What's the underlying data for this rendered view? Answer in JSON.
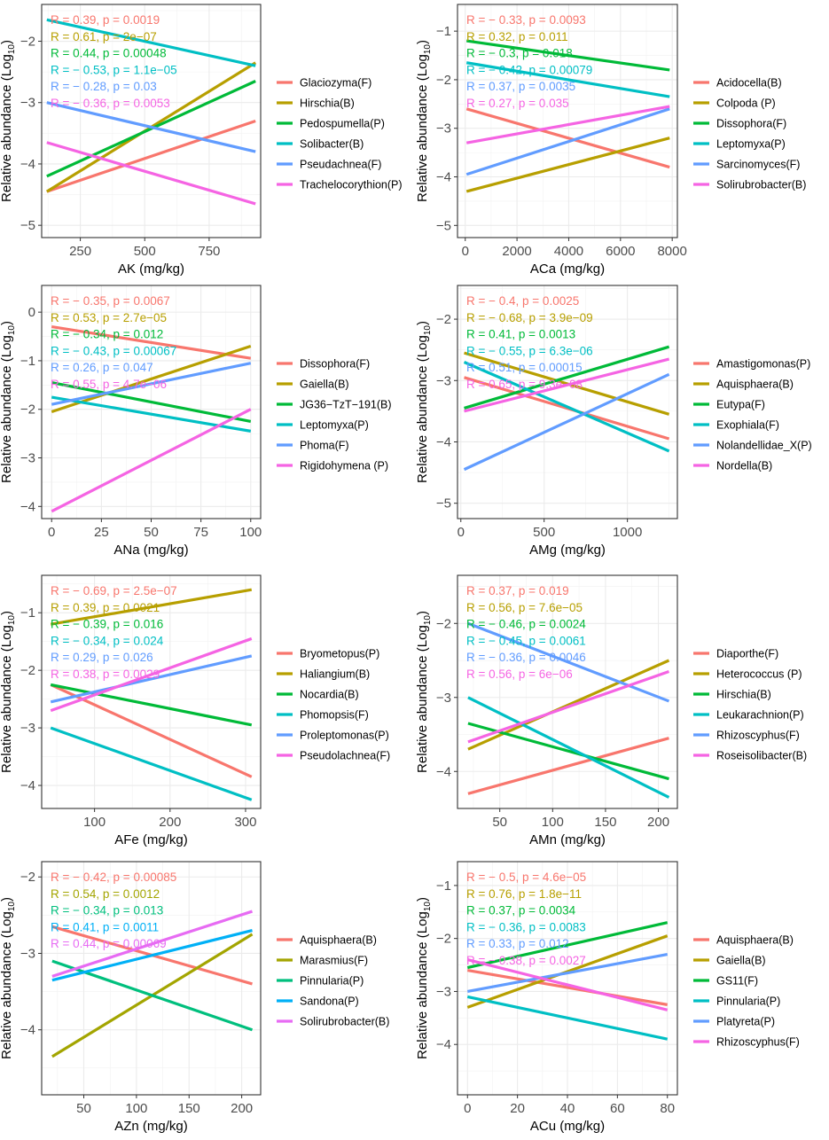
{
  "chart_data": [
    {
      "type": "line",
      "title": "",
      "xlabel": "AK (mg/kg)",
      "ylabel": "Relative abundance (Log10)",
      "xlim": [
        100,
        950
      ],
      "ylim": [
        -5.2,
        -1.4
      ],
      "xticks": [
        250,
        500,
        750
      ],
      "yticks": [
        -5,
        -4,
        -3,
        -2
      ],
      "grid": true,
      "legend_position": "right",
      "series": [
        {
          "name": "Glaciozyma(F)",
          "color": "#F8766D",
          "x": [
            120,
            930
          ],
          "y": [
            -4.45,
            -3.3
          ],
          "stat": "R = 0.39, p = 0.0019"
        },
        {
          "name": "Hirschia(B)",
          "color": "#B79F00",
          "x": [
            120,
            930
          ],
          "y": [
            -4.45,
            -2.35
          ],
          "stat": "R = 0.61, p = 2e−07"
        },
        {
          "name": "Pedospumella(P)",
          "color": "#00BA38",
          "x": [
            120,
            930
          ],
          "y": [
            -4.2,
            -2.65
          ],
          "stat": "R = 0.44, p = 0.00048"
        },
        {
          "name": "Solibacter(B)",
          "color": "#00BFC4",
          "x": [
            120,
            930
          ],
          "y": [
            -1.65,
            -2.4
          ],
          "stat": "R = − 0.53, p = 1.1e−05"
        },
        {
          "name": "Pseudachnea(F)",
          "color": "#619CFF",
          "x": [
            120,
            930
          ],
          "y": [
            -3.0,
            -3.8
          ],
          "stat": "R = − 0.28, p = 0.03"
        },
        {
          "name": "Trachelocorythion(P)",
          "color": "#F564E3",
          "x": [
            120,
            930
          ],
          "y": [
            -3.65,
            -4.65
          ],
          "stat": "R = − 0.36, p = 0.0053"
        }
      ]
    },
    {
      "type": "line",
      "title": "",
      "xlabel": "ACa (mg/kg)",
      "ylabel": "Relative abundance (Log10)",
      "xlim": [
        -300,
        8200
      ],
      "ylim": [
        -5.25,
        -0.45
      ],
      "xticks": [
        0,
        2000,
        4000,
        6000,
        8000
      ],
      "yticks": [
        -5,
        -4,
        -3,
        -2,
        -1
      ],
      "grid": true,
      "legend_position": "right",
      "series": [
        {
          "name": "Acidocella(B)",
          "color": "#F8766D",
          "x": [
            50,
            7900
          ],
          "y": [
            -2.6,
            -3.8
          ],
          "stat": "R = − 0.33, p = 0.0093"
        },
        {
          "name": "Colpoda (P)",
          "color": "#B79F00",
          "x": [
            50,
            7900
          ],
          "y": [
            -4.3,
            -3.2
          ],
          "stat": "R = 0.32, p = 0.011"
        },
        {
          "name": "Dissophora(F)",
          "color": "#00BA38",
          "x": [
            50,
            7900
          ],
          "y": [
            -1.2,
            -1.8
          ],
          "stat": "R = − 0.3, p = 0.018"
        },
        {
          "name": "Leptomyxa(P)",
          "color": "#00BFC4",
          "x": [
            50,
            7900
          ],
          "y": [
            -1.65,
            -2.35
          ],
          "stat": "R = − 0.42, p = 0.00079"
        },
        {
          "name": "Sarcinomyces(F)",
          "color": "#619CFF",
          "x": [
            50,
            7900
          ],
          "y": [
            -3.95,
            -2.6
          ],
          "stat": "R = 0.37, p = 0.0035"
        },
        {
          "name": "Solirubrobacter(B)",
          "color": "#F564E3",
          "x": [
            50,
            7900
          ],
          "y": [
            -3.3,
            -2.55
          ],
          "stat": "R = 0.27, p = 0.035"
        }
      ]
    },
    {
      "type": "line",
      "title": "",
      "xlabel": "ANa (mg/kg)",
      "ylabel": "Relative abundance (Log10)",
      "xlim": [
        -5,
        105
      ],
      "ylim": [
        -4.25,
        0.55
      ],
      "xticks": [
        0,
        25,
        50,
        75,
        100
      ],
      "yticks": [
        -4,
        -3,
        -2,
        -1,
        0
      ],
      "grid": true,
      "legend_position": "right",
      "series": [
        {
          "name": "Dissophora(F)",
          "color": "#F8766D",
          "x": [
            0,
            100
          ],
          "y": [
            -0.3,
            -0.95
          ],
          "stat": "R = − 0.35, p = 0.0067"
        },
        {
          "name": "Gaiella(B)",
          "color": "#B79F00",
          "x": [
            0,
            100
          ],
          "y": [
            -2.05,
            -0.7
          ],
          "stat": "R = 0.53, p = 2.7e−05"
        },
        {
          "name": "JG36−TzT−191(B)",
          "color": "#00BA38",
          "x": [
            0,
            100
          ],
          "y": [
            -1.45,
            -2.25
          ],
          "stat": "R = − 0.34, p = 0.012"
        },
        {
          "name": "Leptomyxa(P)",
          "color": "#00BFC4",
          "x": [
            0,
            100
          ],
          "y": [
            -1.75,
            -2.45
          ],
          "stat": "R = − 0.43, p = 0.00067"
        },
        {
          "name": "Phoma(F)",
          "color": "#619CFF",
          "x": [
            0,
            100
          ],
          "y": [
            -1.9,
            -1.05
          ],
          "stat": "R = 0.26, p = 0.047"
        },
        {
          "name": "Rigidohymena (P)",
          "color": "#F564E3",
          "x": [
            0,
            100
          ],
          "y": [
            -4.1,
            -2.0
          ],
          "stat": "R = 0.55, p = 4.7e−06"
        }
      ]
    },
    {
      "type": "line",
      "title": "",
      "xlabel": "AMg (mg/kg)",
      "ylabel": "Relative abundance (Log10)",
      "xlim": [
        -20,
        1300
      ],
      "ylim": [
        -5.25,
        -1.45
      ],
      "xticks": [
        0,
        500,
        1000
      ],
      "yticks": [
        -5,
        -4,
        -3,
        -2
      ],
      "grid": true,
      "legend_position": "right",
      "series": [
        {
          "name": "Amastigomonas(P)",
          "color": "#F8766D",
          "x": [
            20,
            1250
          ],
          "y": [
            -2.95,
            -3.95
          ],
          "stat": "R = − 0.4, p = 0.0025"
        },
        {
          "name": "Aquisphaera(B)",
          "color": "#B79F00",
          "x": [
            20,
            1250
          ],
          "y": [
            -2.55,
            -3.55
          ],
          "stat": "R = − 0.68, p = 3.9e−09"
        },
        {
          "name": "Eutypa(F)",
          "color": "#00BA38",
          "x": [
            20,
            1250
          ],
          "y": [
            -3.45,
            -2.45
          ],
          "stat": "R = 0.41, p = 0.0013"
        },
        {
          "name": "Exophiala(F)",
          "color": "#00BFC4",
          "x": [
            20,
            1250
          ],
          "y": [
            -2.7,
            -4.15
          ],
          "stat": "R = − 0.55, p = 6.3e−06"
        },
        {
          "name": "Nolandellidae_X(P)",
          "color": "#619CFF",
          "x": [
            20,
            1250
          ],
          "y": [
            -4.45,
            -2.9
          ],
          "stat": "R = 0.51, p = 0.00015"
        },
        {
          "name": "Nordella(B)",
          "color": "#F564E3",
          "x": [
            20,
            1250
          ],
          "y": [
            -3.5,
            -2.65
          ],
          "stat": "R = 0.65, p = 9.3e−08"
        }
      ]
    },
    {
      "type": "line",
      "title": "",
      "xlabel": "AFe (mg/kg)",
      "ylabel": "Relative abundance (Log10)",
      "xlim": [
        30,
        320
      ],
      "ylim": [
        -4.4,
        -0.35
      ],
      "xticks": [
        100,
        200,
        300
      ],
      "yticks": [
        -4,
        -3,
        -2,
        -1
      ],
      "grid": true,
      "legend_position": "right",
      "series": [
        {
          "name": "Bryometopus(P)",
          "color": "#F8766D",
          "x": [
            42,
            308
          ],
          "y": [
            -2.25,
            -3.85
          ],
          "stat": "R = − 0.69, p = 2.5e−07"
        },
        {
          "name": "Haliangium(B)",
          "color": "#B79F00",
          "x": [
            42,
            308
          ],
          "y": [
            -1.2,
            -0.6
          ],
          "stat": "R = 0.39, p = 0.0021"
        },
        {
          "name": "Nocardia(B)",
          "color": "#00BA38",
          "x": [
            42,
            308
          ],
          "y": [
            -2.25,
            -2.95
          ],
          "stat": "R = − 0.39, p = 0.016"
        },
        {
          "name": "Phomopsis(F)",
          "color": "#00BFC4",
          "x": [
            42,
            308
          ],
          "y": [
            -3.0,
            -4.25
          ],
          "stat": "R = − 0.34, p = 0.024"
        },
        {
          "name": "Proleptomonas(P)",
          "color": "#619CFF",
          "x": [
            42,
            308
          ],
          "y": [
            -2.55,
            -1.75
          ],
          "stat": "R = 0.29, p = 0.026"
        },
        {
          "name": "Pseudolachnea(F)",
          "color": "#F564E3",
          "x": [
            42,
            308
          ],
          "y": [
            -2.7,
            -1.45
          ],
          "stat": "R = 0.38, p = 0.0029"
        }
      ]
    },
    {
      "type": "line",
      "title": "",
      "xlabel": "AMn (mg/kg)",
      "ylabel": "Relative abundance (Log10)",
      "xlim": [
        10,
        218
      ],
      "ylim": [
        -4.5,
        -1.35
      ],
      "xticks": [
        50,
        100,
        150,
        200
      ],
      "yticks": [
        -4,
        -3,
        -2
      ],
      "grid": true,
      "legend_position": "right",
      "series": [
        {
          "name": "Diaporthe(F)",
          "color": "#F8766D",
          "x": [
            20,
            210
          ],
          "y": [
            -4.3,
            -3.55
          ],
          "stat": "R = 0.37, p = 0.019"
        },
        {
          "name": "Heterococcus (P)",
          "color": "#B79F00",
          "x": [
            20,
            210
          ],
          "y": [
            -3.7,
            -2.5
          ],
          "stat": "R = 0.56, p = 7.6e−05"
        },
        {
          "name": "Hirschia(B)",
          "color": "#00BA38",
          "x": [
            20,
            210
          ],
          "y": [
            -3.35,
            -4.1
          ],
          "stat": "R = − 0.46, p = 0.0024"
        },
        {
          "name": "Leukarachnion(P)",
          "color": "#00BFC4",
          "x": [
            20,
            210
          ],
          "y": [
            -3.0,
            -4.35
          ],
          "stat": "R = − 0.45, p = 0.0061"
        },
        {
          "name": "Rhizoscyphus(F)",
          "color": "#619CFF",
          "x": [
            20,
            210
          ],
          "y": [
            -2.0,
            -3.05
          ],
          "stat": "R = − 0.36, p = 0.0046"
        },
        {
          "name": "Roseisolibacter(B)",
          "color": "#F564E3",
          "x": [
            20,
            210
          ],
          "y": [
            -3.6,
            -2.65
          ],
          "stat": "R = 0.56, p = 6e−06"
        }
      ]
    },
    {
      "type": "line",
      "title": "",
      "xlabel": "AZn (mg/kg)",
      "ylabel": "Relative abundance (Log10)",
      "xlim": [
        10,
        218
      ],
      "ylim": [
        -4.85,
        -1.8
      ],
      "xticks": [
        50,
        100,
        150,
        200
      ],
      "yticks": [
        -4,
        -3,
        -2
      ],
      "grid": true,
      "legend_position": "right",
      "series": [
        {
          "name": "Aquisphaera(B)",
          "color": "#F8766D",
          "x": [
            20,
            210
          ],
          "y": [
            -2.65,
            -3.4
          ],
          "stat": "R = − 0.42, p = 0.00085"
        },
        {
          "name": "Marasmius(F)",
          "color": "#A3A500",
          "x": [
            20,
            210
          ],
          "y": [
            -4.35,
            -2.75
          ],
          "stat": "R = 0.54, p = 0.0012"
        },
        {
          "name": "Pinnularia(P)",
          "color": "#00BF7D",
          "x": [
            20,
            210
          ],
          "y": [
            -3.1,
            -4.0
          ],
          "stat": "R = − 0.34, p = 0.013"
        },
        {
          "name": "Sandona(P)",
          "color": "#00B0F6",
          "x": [
            20,
            210
          ],
          "y": [
            -3.35,
            -2.7
          ],
          "stat": "R = 0.41, p = 0.0011"
        },
        {
          "name": "Solirubrobacter(B)",
          "color": "#E76BF3",
          "x": [
            20,
            210
          ],
          "y": [
            -3.3,
            -2.45
          ],
          "stat": "R = 0.44, p = 0.00069"
        }
      ]
    },
    {
      "type": "line",
      "title": "",
      "xlabel": "ACu (mg/kg)",
      "ylabel": "Relative abundance (Log10)",
      "xlim": [
        -4,
        84
      ],
      "ylim": [
        -4.95,
        -0.55
      ],
      "xticks": [
        0,
        20,
        40,
        60,
        80
      ],
      "yticks": [
        -4,
        -3,
        -2,
        -1
      ],
      "grid": true,
      "legend_position": "right",
      "series": [
        {
          "name": "Aquisphaera(B)",
          "color": "#F8766D",
          "x": [
            0,
            80
          ],
          "y": [
            -2.6,
            -3.25
          ],
          "stat": "R = − 0.5, p = 4.6e−05"
        },
        {
          "name": "Gaiella(B)",
          "color": "#B79F00",
          "x": [
            0,
            80
          ],
          "y": [
            -3.3,
            -1.95
          ],
          "stat": "R = 0.76, p = 1.8e−11"
        },
        {
          "name": "GS11(F)",
          "color": "#00BA38",
          "x": [
            0,
            80
          ],
          "y": [
            -2.55,
            -1.7
          ],
          "stat": "R = 0.37, p = 0.0034"
        },
        {
          "name": "Pinnularia(P)",
          "color": "#00BFC4",
          "x": [
            0,
            80
          ],
          "y": [
            -3.1,
            -3.9
          ],
          "stat": "R = − 0.36, p = 0.0083"
        },
        {
          "name": "Platyreta(P)",
          "color": "#619CFF",
          "x": [
            0,
            80
          ],
          "y": [
            -3.0,
            -2.3
          ],
          "stat": "R = 0.33, p = 0.012"
        },
        {
          "name": "Rhizoscyphus(F)",
          "color": "#F564E3",
          "x": [
            0,
            80
          ],
          "y": [
            -2.4,
            -3.35
          ],
          "stat": "R = − 0.38, p = 0.0027"
        }
      ]
    }
  ]
}
